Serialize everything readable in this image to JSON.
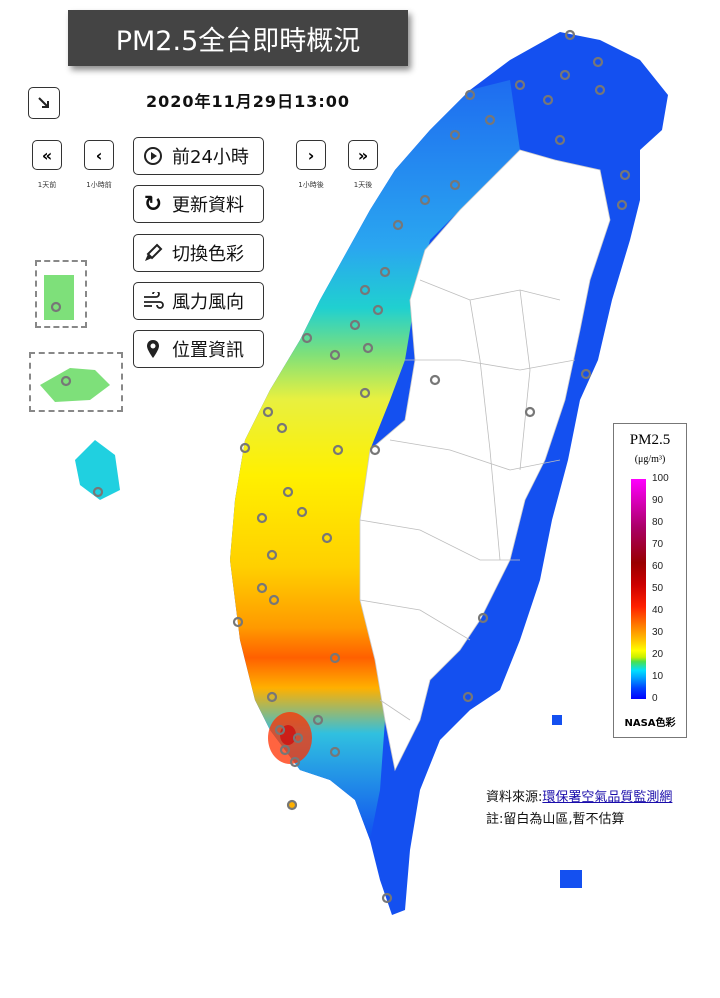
{
  "header": {
    "title": "PM2.5全台即時概況",
    "timestamp": "2020年11月29日13:00"
  },
  "nav": {
    "back_day_label": "1天前",
    "back_hour_label": "1小時前",
    "fwd_hour_label": "1小時後",
    "fwd_day_label": "1天後"
  },
  "buttons": {
    "past24": "前24小時",
    "refresh": "更新資料",
    "switch_color": "切換色彩",
    "wind": "風力風向",
    "location": "位置資訊"
  },
  "legend": {
    "title": "PM2.5",
    "unit": "(μg/m³)",
    "ticks": [
      "100",
      "90",
      "80",
      "70",
      "60",
      "50",
      "40",
      "30",
      "20",
      "10",
      "0"
    ],
    "footer": "NASA色彩"
  },
  "source": {
    "prefix": "資料來源:",
    "link_text": "環保署空氣品質監測網",
    "note": "註:留白為山區,暫不估算"
  },
  "colors": {
    "low": "#0000ff",
    "mid": "#ffff00",
    "high": "#ff2000"
  }
}
